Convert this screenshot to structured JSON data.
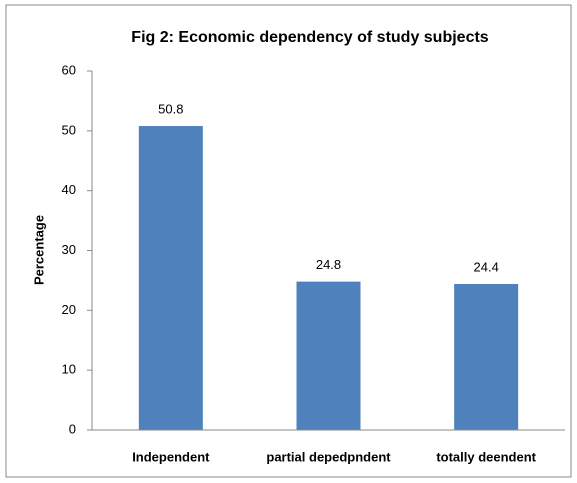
{
  "chart_data": {
    "type": "bar",
    "title": "Fig 2: Economic dependency of study subjects",
    "y_label": "Percentage",
    "categories": [
      "Independent",
      "partial depedpndent",
      "totally deendent"
    ],
    "values": [
      50.8,
      24.8,
      24.4
    ],
    "color": "#4f81bd",
    "ylim": [
      0,
      60
    ],
    "yticks": [
      0,
      10,
      20,
      30,
      40,
      50,
      60
    ],
    "grid": false
  }
}
